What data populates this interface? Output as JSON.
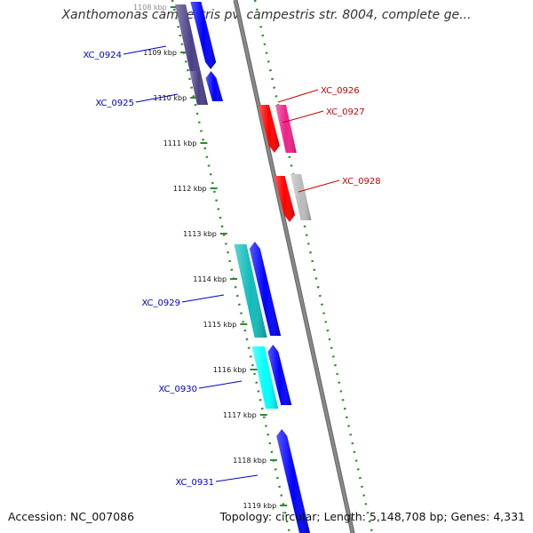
{
  "title": "Xanthomonas campestris pv. campestris str. 8004, complete ge...",
  "footer": {
    "accession": "Accession: NC_007086",
    "summary": "Topology: circular; Length: 5,148,708 bp; Genes: 4,331"
  },
  "ruler": {
    "unit": "kbp",
    "ticks": [
      {
        "value": 1108,
        "label": "1108 kbp"
      },
      {
        "value": 1109,
        "label": "1109 kbp"
      },
      {
        "value": 1110,
        "label": "1110 kbp"
      },
      {
        "value": 1111,
        "label": "1111 kbp"
      },
      {
        "value": 1112,
        "label": "1112 kbp"
      },
      {
        "value": 1113,
        "label": "1113 kbp"
      },
      {
        "value": 1114,
        "label": "1114 kbp"
      },
      {
        "value": 1115,
        "label": "1115 kbp"
      },
      {
        "value": 1116,
        "label": "1116 kbp"
      },
      {
        "value": 1117,
        "label": "1117 kbp"
      },
      {
        "value": 1118,
        "label": "1118 kbp"
      },
      {
        "value": 1119,
        "label": "1119 kbp"
      }
    ]
  },
  "genes": [
    {
      "name": "XC_0924",
      "strand": "minus",
      "color": "#4a3f86",
      "label_color": "#0000cc"
    },
    {
      "name": "XC_0925",
      "strand": "minus",
      "color": "#4a3f86",
      "label_color": "#0000cc"
    },
    {
      "name": "XC_0926",
      "strand": "plus",
      "color": "#ff0000",
      "label_color": "#cc0000"
    },
    {
      "name": "XC_0927",
      "strand": "plus",
      "color": "#ee2288",
      "label_color": "#cc0000"
    },
    {
      "name": "XC_0928",
      "strand": "plus",
      "color": "#bbbbbb",
      "label_color": "#cc0000"
    },
    {
      "name": "XC_0929",
      "strand": "minus",
      "color": "#11bbbb",
      "label_color": "#0000cc"
    },
    {
      "name": "XC_0930",
      "strand": "minus",
      "color": "#00ffff",
      "label_color": "#0000cc"
    },
    {
      "name": "XC_0931",
      "strand": "minus",
      "color": "#0000ff",
      "label_color": "#0000cc"
    }
  ],
  "colors": {
    "backbone": "#888888",
    "ruler": "#2e8b2e",
    "cds": "#0000ff",
    "plus_cds": "#ff0000"
  }
}
